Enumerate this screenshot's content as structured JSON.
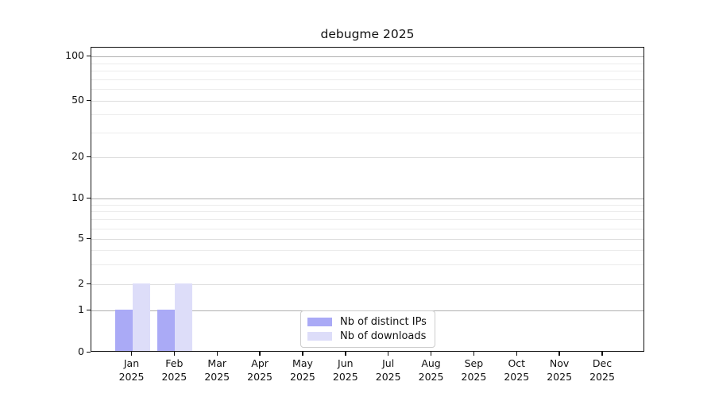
{
  "chart_data": {
    "type": "bar",
    "title": "debugme 2025",
    "categories": [
      "Jan",
      "Feb",
      "Mar",
      "Apr",
      "May",
      "Jun",
      "Jul",
      "Aug",
      "Sep",
      "Oct",
      "Nov",
      "Dec"
    ],
    "category_sub_label": "2025",
    "series": [
      {
        "name": "Nb of distinct IPs",
        "color": "#aaaaf6",
        "values": [
          1,
          1,
          0,
          0,
          0,
          0,
          0,
          0,
          0,
          0,
          0,
          0
        ]
      },
      {
        "name": "Nb of downloads",
        "color": "#ddddf9",
        "values": [
          2,
          2,
          0,
          0,
          0,
          0,
          0,
          0,
          0,
          0,
          0,
          0
        ]
      }
    ],
    "y_axis": {
      "scale": "log-like with 0 baseline",
      "major_ticks": [
        0,
        1,
        2,
        5,
        10,
        20,
        50,
        100
      ],
      "decade_ticks": [
        1,
        10,
        100
      ],
      "minor_ticks": [
        3,
        4,
        6,
        7,
        8,
        9,
        30,
        40,
        60,
        70,
        80,
        90
      ],
      "ylim": [
        0,
        115
      ]
    },
    "x_axis": {
      "label": ""
    },
    "legend_position": "bottom-center-inside",
    "grid": "horizontal-only"
  },
  "colors": {
    "background": "#ffffff",
    "spine": "#111111",
    "grid_decade": "#b0b0b0",
    "grid_major": "#dedede",
    "grid_minor": "#ececec",
    "text": "#111111",
    "legend_border": "#cccccc",
    "bar_distinct_ips": "#aaaaf6",
    "bar_downloads": "#ddddf9"
  }
}
